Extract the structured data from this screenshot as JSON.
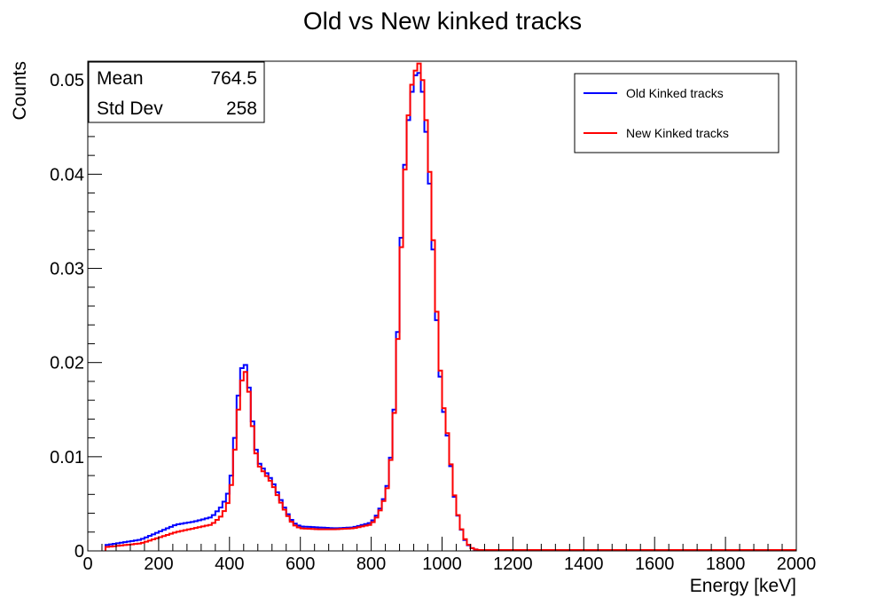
{
  "chart_data": {
    "type": "line",
    "title": "Old vs New kinked tracks",
    "xlabel": "Energy [keV]",
    "ylabel": "Counts",
    "xlim": [
      0,
      2000
    ],
    "ylim": [
      0,
      0.052
    ],
    "xticks": [
      0,
      200,
      400,
      600,
      800,
      1000,
      1200,
      1400,
      1600,
      1800,
      2000
    ],
    "xtick_labels": [
      "0",
      "200",
      "400",
      "600",
      "800",
      "1000",
      "1200",
      "1400",
      "1600",
      "1800",
      "2000"
    ],
    "yticks": [
      0,
      0.01,
      0.02,
      0.03,
      0.04,
      0.05
    ],
    "ytick_labels": [
      "0",
      "0.01",
      "0.02",
      "0.03",
      "0.04",
      "0.05"
    ],
    "stats": [
      {
        "label": "Mean",
        "value": "764.5"
      },
      {
        "label": "Std Dev",
        "value": "258"
      }
    ],
    "legend_position": "top-right",
    "bin_width": 10,
    "x": [
      50,
      150,
      250,
      300,
      350,
      380,
      400,
      410,
      420,
      430,
      440,
      450,
      460,
      470,
      480,
      500,
      520,
      540,
      560,
      580,
      600,
      650,
      700,
      750,
      800,
      820,
      840,
      850,
      860,
      870,
      880,
      890,
      900,
      910,
      920,
      930,
      940,
      950,
      960,
      970,
      980,
      990,
      1000,
      1010,
      1020,
      1030,
      1040,
      1050,
      1060,
      1070,
      1080,
      1090,
      1100,
      1110,
      1120,
      1130,
      1150,
      1200,
      1400,
      1650,
      2000
    ],
    "series": [
      {
        "name": "Old Kinked tracks",
        "color": "#0000ff",
        "values": [
          0.0006,
          0.0012,
          0.0028,
          0.0031,
          0.0036,
          0.0048,
          0.0065,
          0.0095,
          0.0145,
          0.0185,
          0.0203,
          0.0192,
          0.0155,
          0.012,
          0.0095,
          0.0085,
          0.0075,
          0.0058,
          0.0042,
          0.003,
          0.0026,
          0.0025,
          0.0024,
          0.0025,
          0.003,
          0.004,
          0.006,
          0.0078,
          0.012,
          0.018,
          0.0285,
          0.038,
          0.044,
          0.0475,
          0.05,
          0.051,
          0.0505,
          0.047,
          0.042,
          0.036,
          0.028,
          0.021,
          0.016,
          0.0135,
          0.011,
          0.007,
          0.0045,
          0.003,
          0.0015,
          0.0008,
          0.0004,
          0.0002,
          0.0001,
          0.0001,
          0.0001,
          0.0001,
          0.0001,
          0.0001,
          0.0001,
          0.0001,
          0.0001
        ]
      },
      {
        "name": "New Kinked tracks",
        "color": "#ff0000",
        "values": [
          0.0004,
          0.0008,
          0.002,
          0.0024,
          0.0028,
          0.0038,
          0.0055,
          0.0085,
          0.013,
          0.017,
          0.0192,
          0.0188,
          0.015,
          0.0115,
          0.0092,
          0.0082,
          0.0072,
          0.0055,
          0.004,
          0.0028,
          0.0024,
          0.0023,
          0.0023,
          0.0024,
          0.0028,
          0.0038,
          0.0058,
          0.0075,
          0.0118,
          0.0175,
          0.0275,
          0.037,
          0.044,
          0.0485,
          0.0505,
          0.0515,
          0.052,
          0.048,
          0.0435,
          0.037,
          0.029,
          0.0218,
          0.0165,
          0.0138,
          0.0112,
          0.0072,
          0.0046,
          0.003,
          0.0016,
          0.0009,
          0.0004,
          0.0002,
          0.0001,
          0.0001,
          0.0001,
          0.0001,
          0.0001,
          0.0001,
          0.0001,
          0.0001,
          0.0001
        ]
      }
    ]
  }
}
